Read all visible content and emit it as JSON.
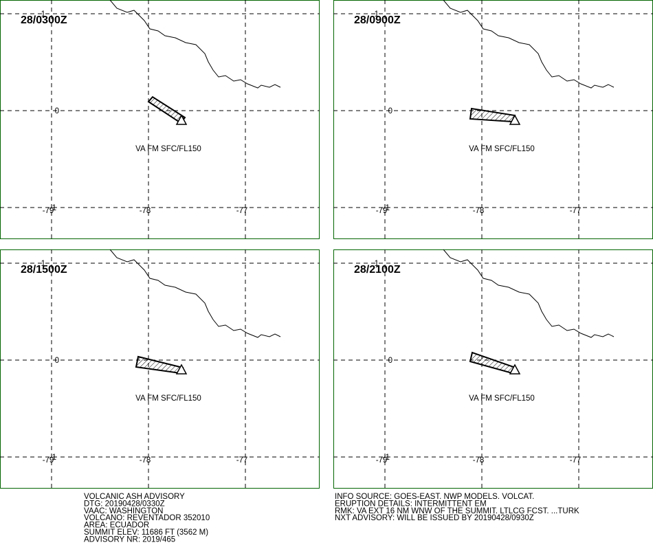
{
  "panels": [
    {
      "time": "28/0300Z",
      "label": "VA FM SFC/FL150"
    },
    {
      "time": "28/0900Z",
      "label": "VA FM SFC/FL150"
    },
    {
      "time": "28/1500Z",
      "label": "VA FM SFC/FL150"
    },
    {
      "time": "28/2100Z",
      "label": "VA FM SFC/FL150"
    }
  ],
  "grid": {
    "lat_labels": [
      "1",
      "0",
      "-1"
    ],
    "lon_labels": [
      "-79",
      "-78",
      "-77"
    ]
  },
  "advisory": {
    "left": [
      "VOLCANIC ASH ADVISORY",
      "DTG: 20190428/0330Z",
      "VAAC: WASHINGTON",
      "VOLCANO: REVENTADOR 352010",
      "AREA: ECUADOR",
      "SUMMIT ELEV: 11686 FT (3562 M)",
      "ADVISORY NR: 2019/465"
    ],
    "right": [
      "INFO SOURCE: GOES-EAST. NWP MODELS. VOLCAT.",
      "ERUPTION DETAILS: INTERMITTENT EM",
      "RMK: VA EXT 16 NM WNW OF THE SUMMIT. LTLCG FCST. ...TURK",
      "NXT ADVISORY: WILL BE ISSUED BY 20190428/0930Z"
    ]
  }
}
